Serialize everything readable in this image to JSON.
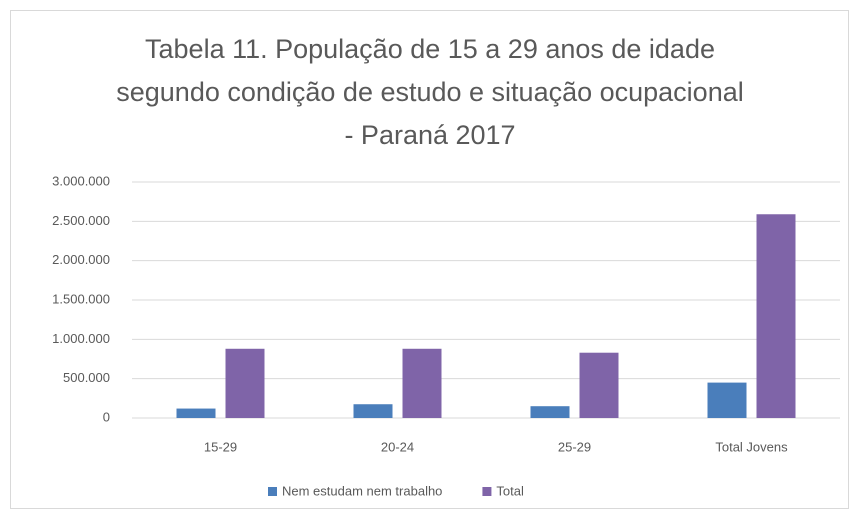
{
  "chart_data": {
    "type": "bar",
    "title": "Tabela 11. População de 15 a 29 anos de idade segundo condição de estudo e situação ocupacional - Paraná 2017",
    "categories": [
      "15-29",
      "20-24",
      "25-29",
      "Total Jovens"
    ],
    "series": [
      {
        "name": "Nem estudam nem trabalho",
        "color": "#4a7ebb",
        "values": [
          120000,
          175000,
          150000,
          450000
        ]
      },
      {
        "name": "Total",
        "color": "#7f64a8",
        "values": [
          880000,
          880000,
          830000,
          2590000
        ]
      }
    ],
    "ylim": [
      0,
      3000000
    ],
    "yticks": [
      0,
      {
        "value": 500000,
        "label": "500.000"
      },
      {
        "value": 1000000,
        "label": "1.000.000"
      },
      {
        "value": 1500000,
        "label": "1.500.000"
      },
      {
        "value": 2000000,
        "label": "2.000.000"
      },
      {
        "value": 2500000,
        "label": "2.500.000"
      },
      {
        "value": 3000000,
        "label": "3.000.000"
      }
    ],
    "grid": true,
    "legend": "bottom"
  }
}
